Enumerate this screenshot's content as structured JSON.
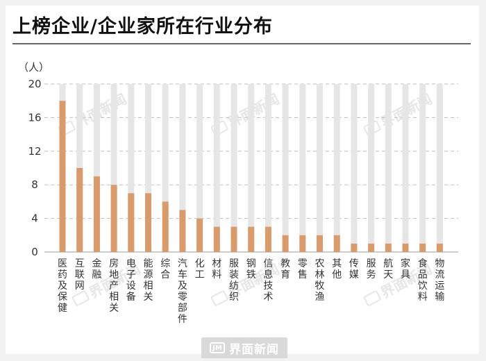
{
  "title": "上榜企业/企业家所在行业分布",
  "unit_label": "（人）",
  "footer": {
    "brand": "界面新闻",
    "logo_glyph": "JM"
  },
  "watermarks": [
    "界面新闻",
    "界面新闻",
    "界面新闻",
    "界面新闻",
    "界面新闻",
    "界面新闻"
  ],
  "colors": {
    "bar": "#d99b6c",
    "track": "#e6e6e6",
    "grid": "#bdbdbd",
    "text": "#333333"
  },
  "chart_data": {
    "type": "bar",
    "title": "上榜企业/企业家所在行业分布",
    "ylabel": "（人）",
    "xlabel": "",
    "ylim": [
      0,
      20
    ],
    "yticks": [
      0,
      4,
      8,
      12,
      16,
      20
    ],
    "grid": true,
    "categories": [
      "医药及保健",
      "互联网",
      "金融",
      "房地产相关",
      "电子设备",
      "能源相关",
      "综合",
      "汽车及零部件",
      "化工",
      "材料",
      "服装纺织",
      "钢铁",
      "信息技术",
      "教育",
      "零售",
      "农林牧渔",
      "其他",
      "传媒",
      "服务",
      "航天",
      "家具",
      "食品饮料",
      "物流运输"
    ],
    "values": [
      18,
      10,
      9,
      8,
      7,
      7,
      6,
      5,
      4,
      3,
      3,
      3,
      3,
      2,
      2,
      2,
      2,
      1,
      1,
      1,
      1,
      1,
      1
    ]
  }
}
